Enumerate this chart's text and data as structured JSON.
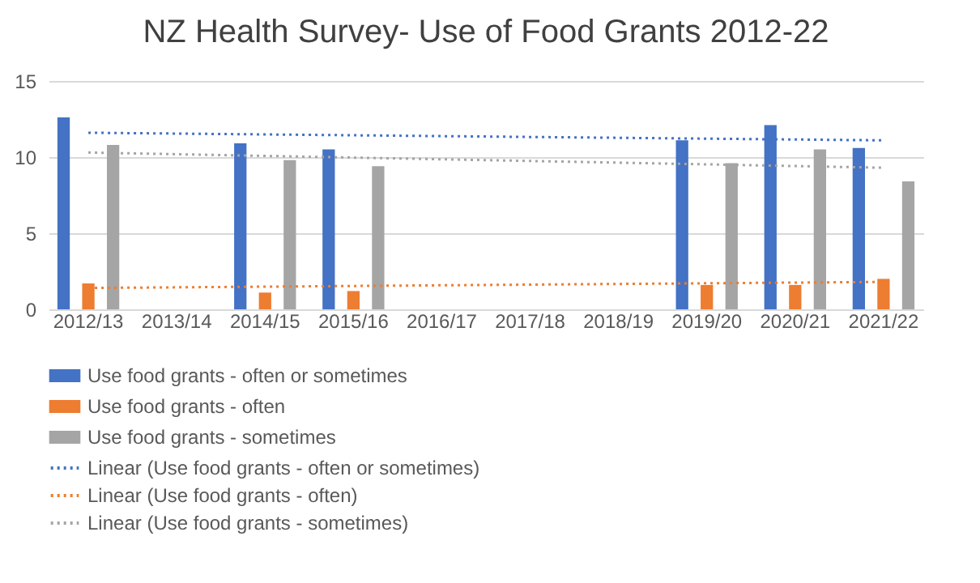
{
  "chart_data": {
    "type": "bar",
    "title": "NZ Health Survey- Use of Food Grants 2012-22",
    "categories": [
      "2012/13",
      "2013/14",
      "2014/15",
      "2015/16",
      "2016/17",
      "2017/18",
      "2018/19",
      "2019/20",
      "2020/21",
      "2021/22"
    ],
    "series": [
      {
        "name": "Use food grants - often or sometimes",
        "color": "#4472c4",
        "values": [
          12.6,
          null,
          10.9,
          10.5,
          null,
          null,
          null,
          11.1,
          12.1,
          10.6
        ]
      },
      {
        "name": "Use food grants - often",
        "color": "#ed7d31",
        "values": [
          1.7,
          null,
          1.1,
          1.2,
          null,
          null,
          null,
          1.6,
          1.6,
          2.0
        ]
      },
      {
        "name": "Use food grants - sometimes",
        "color": "#a5a5a5",
        "values": [
          10.8,
          null,
          9.8,
          9.4,
          null,
          null,
          null,
          9.6,
          10.5,
          8.4
        ]
      },
      {
        "name": "Linear (Use food grants - often or sometimes)",
        "type": "line",
        "color": "#4472c4",
        "line_style": "dotted",
        "x": [
          "2012/13",
          "2021/22"
        ],
        "values": [
          11.6,
          11.1
        ]
      },
      {
        "name": "Linear (Use food grants - often)",
        "type": "line",
        "color": "#ed7d31",
        "line_style": "dotted",
        "x": [
          "2012/13",
          "2021/22"
        ],
        "values": [
          1.4,
          1.8
        ]
      },
      {
        "name": "Linear (Use food grants - sometimes)",
        "type": "line",
        "color": "#a5a5a5",
        "line_style": "dotted",
        "x": [
          "2012/13",
          "2021/22"
        ],
        "values": [
          10.3,
          9.3
        ]
      }
    ],
    "ylim": [
      0,
      15
    ],
    "yticks": [
      0,
      5,
      10,
      15
    ],
    "grid": "y",
    "legend": "bottom",
    "marker": "none"
  }
}
